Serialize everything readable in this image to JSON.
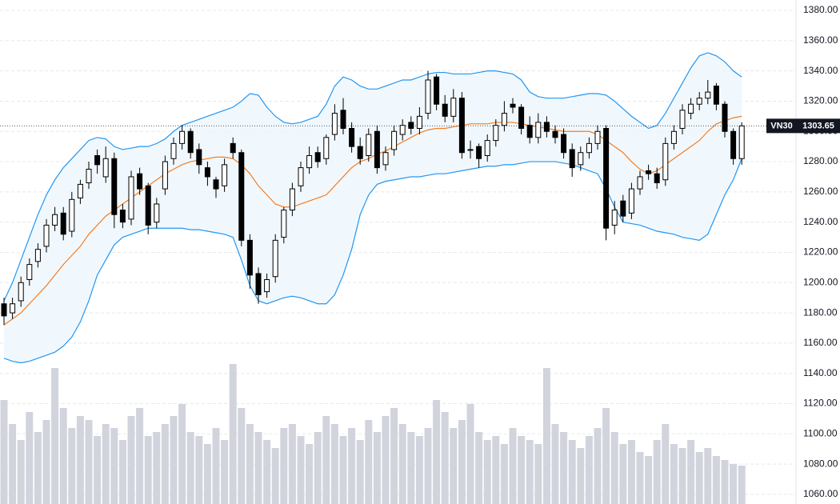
{
  "chart_data": {
    "type": "candlestick",
    "symbol": "VN30",
    "last_price_label": "1303.65",
    "open": [
      1186,
      1180,
      1188,
      1202,
      1214,
      1224,
      1238,
      1246,
      1234,
      1256,
      1266,
      1284,
      1270,
      1282,
      1248,
      1242,
      1272,
      1264,
      1240,
      1262,
      1282,
      1292,
      1300,
      1288,
      1276,
      1268,
      1264,
      1292,
      1286,
      1228,
      1206,
      1194,
      1204,
      1230,
      1248,
      1264,
      1276,
      1286,
      1282,
      1298,
      1314,
      1302,
      1290,
      1284,
      1300,
      1278,
      1288,
      1298,
      1306,
      1302,
      1312,
      1336,
      1318,
      1310,
      1322,
      1288,
      1290,
      1284,
      1294,
      1304,
      1318,
      1316,
      1304,
      1296,
      1306,
      1300,
      1298,
      1288,
      1278,
      1286,
      1292,
      1302,
      1238,
      1254,
      1246,
      1262,
      1274,
      1272,
      1268,
      1292,
      1302,
      1312,
      1318,
      1322,
      1330,
      1318,
      1300,
      1282
    ],
    "high": [
      1190,
      1190,
      1204,
      1216,
      1226,
      1242,
      1250,
      1250,
      1260,
      1268,
      1280,
      1288,
      1290,
      1286,
      1252,
      1274,
      1276,
      1266,
      1256,
      1284,
      1296,
      1304,
      1302,
      1292,
      1280,
      1270,
      1282,
      1296,
      1288,
      1232,
      1210,
      1206,
      1232,
      1250,
      1266,
      1280,
      1290,
      1290,
      1298,
      1318,
      1322,
      1306,
      1296,
      1302,
      1304,
      1290,
      1304,
      1308,
      1310,
      1316,
      1340,
      1338,
      1324,
      1328,
      1326,
      1294,
      1292,
      1298,
      1308,
      1320,
      1322,
      1318,
      1310,
      1312,
      1310,
      1304,
      1302,
      1292,
      1290,
      1296,
      1304,
      1304,
      1254,
      1258,
      1266,
      1274,
      1278,
      1276,
      1296,
      1304,
      1318,
      1322,
      1326,
      1334,
      1332,
      1320,
      1302,
      1306
    ],
    "low": [
      1172,
      1176,
      1184,
      1198,
      1210,
      1220,
      1234,
      1228,
      1230,
      1252,
      1262,
      1272,
      1266,
      1236,
      1236,
      1238,
      1258,
      1232,
      1236,
      1258,
      1278,
      1288,
      1282,
      1272,
      1264,
      1256,
      1260,
      1282,
      1224,
      1196,
      1186,
      1190,
      1200,
      1226,
      1244,
      1260,
      1272,
      1276,
      1278,
      1294,
      1298,
      1286,
      1278,
      1280,
      1272,
      1274,
      1284,
      1294,
      1298,
      1298,
      1308,
      1314,
      1306,
      1306,
      1282,
      1282,
      1276,
      1280,
      1290,
      1300,
      1312,
      1298,
      1292,
      1292,
      1296,
      1292,
      1282,
      1270,
      1274,
      1282,
      1288,
      1228,
      1232,
      1240,
      1242,
      1258,
      1268,
      1262,
      1264,
      1288,
      1298,
      1308,
      1314,
      1318,
      1314,
      1296,
      1278,
      1278
    ],
    "close": [
      1178,
      1186,
      1200,
      1212,
      1222,
      1238,
      1245,
      1232,
      1255,
      1265,
      1275,
      1278,
      1282,
      1245,
      1240,
      1270,
      1262,
      1238,
      1252,
      1280,
      1292,
      1300,
      1286,
      1278,
      1270,
      1262,
      1278,
      1286,
      1228,
      1205,
      1192,
      1202,
      1228,
      1248,
      1262,
      1276,
      1284,
      1280,
      1296,
      1312,
      1302,
      1290,
      1282,
      1298,
      1276,
      1286,
      1300,
      1304,
      1302,
      1310,
      1334,
      1318,
      1310,
      1322,
      1286,
      1288,
      1282,
      1294,
      1304,
      1312,
      1316,
      1302,
      1296,
      1306,
      1300,
      1296,
      1286,
      1276,
      1286,
      1292,
      1300,
      1236,
      1248,
      1244,
      1262,
      1270,
      1272,
      1266,
      1292,
      1300,
      1314,
      1318,
      1322,
      1326,
      1318,
      1300,
      1282,
      1303.65
    ],
    "up_color": "#ffffff",
    "down_color": "#000000",
    "bands": {
      "upper": [
        1188,
        1200,
        1215,
        1230,
        1245,
        1258,
        1268,
        1276,
        1282,
        1288,
        1294,
        1296,
        1295,
        1290,
        1288,
        1289,
        1290,
        1290,
        1292,
        1295,
        1300,
        1304,
        1306,
        1308,
        1310,
        1312,
        1314,
        1316,
        1320,
        1325,
        1324,
        1316,
        1310,
        1306,
        1305,
        1306,
        1308,
        1310,
        1318,
        1330,
        1336,
        1334,
        1330,
        1328,
        1328,
        1330,
        1332,
        1334,
        1334,
        1336,
        1338,
        1339,
        1339,
        1338,
        1338,
        1338,
        1339,
        1340,
        1340,
        1339,
        1338,
        1334,
        1326,
        1323,
        1322,
        1322,
        1322,
        1323,
        1324,
        1325,
        1325,
        1324,
        1320,
        1315,
        1310,
        1306,
        1302,
        1304,
        1312,
        1322,
        1332,
        1342,
        1350,
        1352,
        1350,
        1346,
        1340,
        1336
      ],
      "middle": [
        1172,
        1176,
        1180,
        1186,
        1192,
        1198,
        1205,
        1212,
        1218,
        1224,
        1232,
        1238,
        1244,
        1248,
        1252,
        1256,
        1260,
        1264,
        1268,
        1272,
        1275,
        1278,
        1280,
        1281,
        1282,
        1283,
        1283,
        1282,
        1278,
        1272,
        1264,
        1258,
        1252,
        1250,
        1250,
        1252,
        1254,
        1256,
        1258,
        1264,
        1270,
        1276,
        1280,
        1282,
        1285,
        1287,
        1290,
        1293,
        1296,
        1299,
        1301,
        1302,
        1302,
        1303,
        1304,
        1305,
        1305,
        1305,
        1306,
        1306,
        1306,
        1305,
        1304,
        1303,
        1302,
        1301,
        1300,
        1300,
        1300,
        1300,
        1298,
        1294,
        1290,
        1286,
        1280,
        1275,
        1272,
        1274,
        1278,
        1282,
        1286,
        1290,
        1294,
        1300,
        1305,
        1307,
        1309,
        1310
      ],
      "lower": [
        1150,
        1148,
        1147,
        1148,
        1150,
        1152,
        1154,
        1158,
        1164,
        1174,
        1188,
        1205,
        1215,
        1225,
        1230,
        1232,
        1234,
        1236,
        1236,
        1236,
        1236,
        1236,
        1235,
        1235,
        1234,
        1233,
        1232,
        1230,
        1215,
        1198,
        1188,
        1186,
        1188,
        1190,
        1191,
        1190,
        1188,
        1186,
        1186,
        1192,
        1205,
        1222,
        1245,
        1258,
        1265,
        1267,
        1268,
        1269,
        1270,
        1270,
        1271,
        1272,
        1272,
        1273,
        1274,
        1275,
        1276,
        1277,
        1277,
        1278,
        1278,
        1279,
        1280,
        1280,
        1280,
        1280,
        1279,
        1278,
        1276,
        1274,
        1272,
        1262,
        1250,
        1240,
        1239,
        1238,
        1236,
        1234,
        1233,
        1232,
        1230,
        1229,
        1228,
        1232,
        1245,
        1258,
        1268,
        1282
      ],
      "band_color": "#2196f3",
      "fill_color": "#eef6fc",
      "middle_color": "#f57c20"
    },
    "volume": {
      "color": "#d1d4dc",
      "values": [
        130,
        100,
        80,
        115,
        90,
        105,
        170,
        120,
        95,
        110,
        105,
        85,
        100,
        95,
        80,
        110,
        120,
        85,
        90,
        100,
        110,
        125,
        90,
        85,
        75,
        95,
        80,
        175,
        120,
        100,
        90,
        80,
        70,
        95,
        100,
        85,
        75,
        90,
        110,
        100,
        85,
        95,
        80,
        105,
        90,
        110,
        120,
        100,
        90,
        85,
        95,
        130,
        115,
        95,
        105,
        125,
        90,
        80,
        85,
        75,
        95,
        85,
        80,
        75,
        170,
        100,
        90,
        80,
        70,
        85,
        95,
        120,
        90,
        75,
        80,
        65,
        60,
        80,
        100,
        75,
        70,
        80,
        65,
        70,
        60,
        55,
        50,
        48
      ]
    },
    "ylim": [
      1053.6,
      1386.9
    ],
    "yticks": [
      {
        "value": 1060,
        "label": "1060.00"
      },
      {
        "value": 1080,
        "label": "1080.00"
      },
      {
        "value": 1100,
        "label": "1100.00"
      },
      {
        "value": 1120,
        "label": "1120.00"
      },
      {
        "value": 1140,
        "label": "1140.00"
      },
      {
        "value": 1160,
        "label": "1160.00"
      },
      {
        "value": 1180,
        "label": "1180.00"
      },
      {
        "value": 1200,
        "label": "1200.00"
      },
      {
        "value": 1220,
        "label": "1220.00"
      },
      {
        "value": 1240,
        "label": "1240.00"
      },
      {
        "value": 1260,
        "label": "1260.00"
      },
      {
        "value": 1280,
        "label": "1280.00"
      },
      {
        "value": 1300,
        "label": "1300.00"
      },
      {
        "value": 1320,
        "label": "1320.00"
      },
      {
        "value": 1340,
        "label": "1340.00"
      },
      {
        "value": 1360,
        "label": "1360.00"
      },
      {
        "value": 1380,
        "label": "1380.00"
      }
    ],
    "grid": true
  }
}
